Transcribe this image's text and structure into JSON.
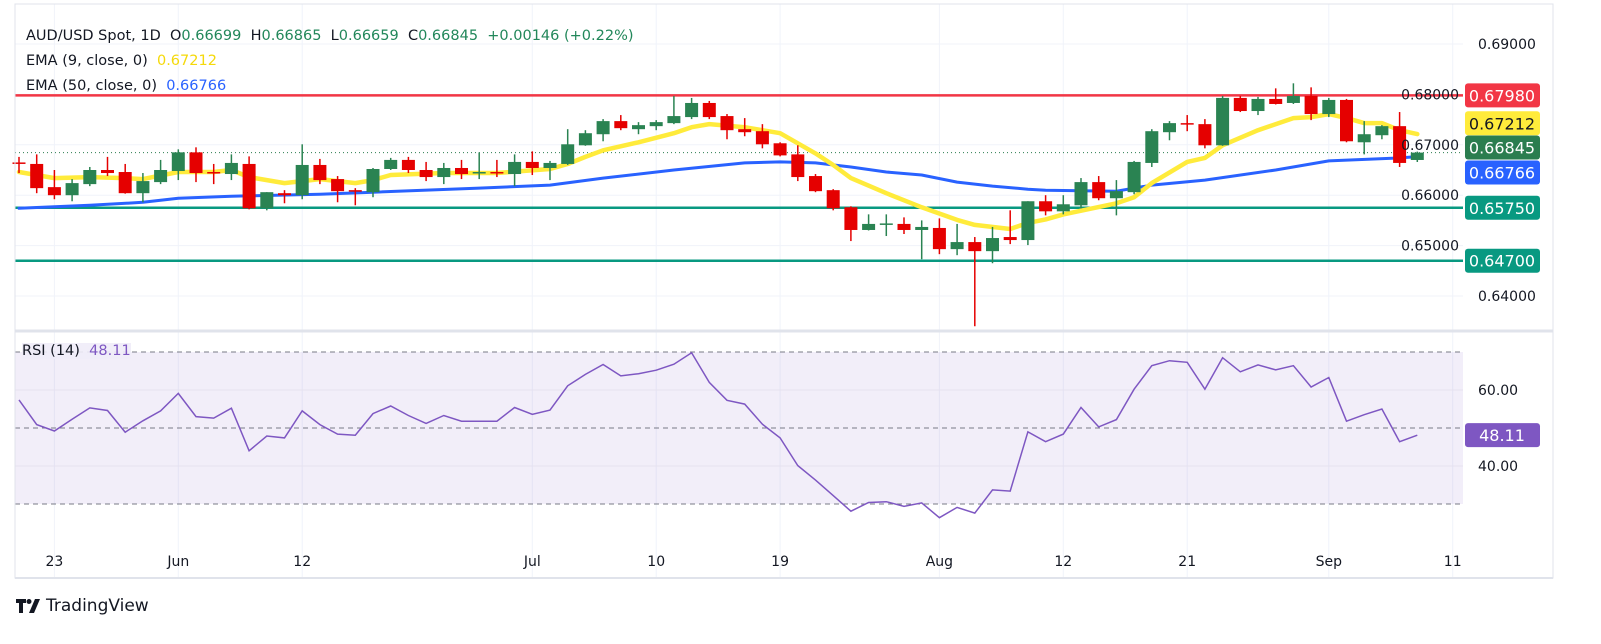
{
  "header": {
    "symbol": "AUD/USD Spot, 1D",
    "ohlc": [
      {
        "key": "O",
        "value": "0.66699"
      },
      {
        "key": "H",
        "value": "0.66865"
      },
      {
        "key": "L",
        "value": "0.66659"
      },
      {
        "key": "C",
        "value": "0.66845"
      }
    ],
    "change": "+0.00146 (+0.22%)",
    "ema9_label": "EMA (9, close, 0)",
    "ema9_value": "0.67212",
    "ema50_label": "EMA (50, close, 0)",
    "ema50_value": "0.66766",
    "rsi_label": "RSI (14)",
    "rsi_value": "48.11"
  },
  "colors": {
    "up": "#2a8352",
    "down": "#e50000",
    "ema9": "#ffeb3b",
    "ema50": "#2962ff",
    "resistance": "#f23645",
    "support": "#089981",
    "rsi": "#7e57c2",
    "last_price": "#2b7d4f"
  },
  "brand": "TradingView",
  "chart_data": [
    {
      "type": "candlestick",
      "title": "AUD/USD Spot, 1D",
      "ylim": [
        0.6335,
        0.6935
      ],
      "grid": true,
      "y_ticks": [
        "0.69000",
        "0.68000",
        "0.67000",
        "0.66000",
        "0.65000",
        "0.64000"
      ],
      "x_ticks": [
        {
          "label": "23",
          "date": "05-23"
        },
        {
          "label": "Jun",
          "date": "06-03"
        },
        {
          "label": "12",
          "date": "06-12"
        },
        {
          "label": "Jul",
          "date": "07-01"
        },
        {
          "label": "10",
          "date": "07-10"
        },
        {
          "label": "19",
          "date": "07-19"
        },
        {
          "label": "Aug",
          "date": "08-01"
        },
        {
          "label": "12",
          "date": "08-12"
        },
        {
          "label": "21",
          "date": "08-21"
        },
        {
          "label": "Sep",
          "date": "09-02"
        },
        {
          "label": "11",
          "date": "09-11"
        }
      ],
      "candles_columns": [
        "date",
        "open",
        "high",
        "low",
        "close"
      ],
      "candles": [
        [
          "05-21",
          0.6665,
          0.6676,
          0.6644,
          0.6664
        ],
        [
          "05-22",
          0.6662,
          0.6681,
          0.6604,
          0.6614
        ],
        [
          "05-23",
          0.6616,
          0.665,
          0.6592,
          0.66
        ],
        [
          "05-24",
          0.66,
          0.6632,
          0.6588,
          0.6624
        ],
        [
          "05-27",
          0.6622,
          0.6656,
          0.6618,
          0.665
        ],
        [
          "05-28",
          0.665,
          0.6676,
          0.6638,
          0.6644
        ],
        [
          "05-29",
          0.6646,
          0.6662,
          0.6603,
          0.6604
        ],
        [
          "05-30",
          0.6604,
          0.6644,
          0.6586,
          0.6628
        ],
        [
          "05-31",
          0.6626,
          0.667,
          0.6622,
          0.665
        ],
        [
          "06-03",
          0.6648,
          0.6691,
          0.663,
          0.6685
        ],
        [
          "06-04",
          0.6685,
          0.6695,
          0.6626,
          0.6644
        ],
        [
          "06-05",
          0.6646,
          0.6662,
          0.6622,
          0.6644
        ],
        [
          "06-06",
          0.6642,
          0.6681,
          0.663,
          0.6664
        ],
        [
          "06-07",
          0.6662,
          0.6677,
          0.6572,
          0.6574
        ],
        [
          "06-10",
          0.6574,
          0.6606,
          0.657,
          0.6606
        ],
        [
          "06-11",
          0.6604,
          0.661,
          0.6584,
          0.66
        ],
        [
          "06-12",
          0.66,
          0.6701,
          0.6592,
          0.666
        ],
        [
          "06-13",
          0.666,
          0.6672,
          0.6622,
          0.663
        ],
        [
          "06-14",
          0.6632,
          0.6638,
          0.6586,
          0.6608
        ],
        [
          "06-17",
          0.661,
          0.6614,
          0.658,
          0.6608
        ],
        [
          "06-18",
          0.6606,
          0.6654,
          0.6596,
          0.6652
        ],
        [
          "06-19",
          0.6652,
          0.6674,
          0.665,
          0.667
        ],
        [
          "06-20",
          0.667,
          0.6676,
          0.6644,
          0.665
        ],
        [
          "06-21",
          0.665,
          0.6666,
          0.6628,
          0.6636
        ],
        [
          "06-24",
          0.6636,
          0.6664,
          0.6622,
          0.6654
        ],
        [
          "06-25",
          0.6654,
          0.667,
          0.6632,
          0.6642
        ],
        [
          "06-26",
          0.6644,
          0.6685,
          0.6632,
          0.6646
        ],
        [
          "06-27",
          0.6646,
          0.667,
          0.6636,
          0.6644
        ],
        [
          "06-28",
          0.6642,
          0.6681,
          0.6618,
          0.6666
        ],
        [
          "07-01",
          0.6666,
          0.6687,
          0.664,
          0.6654
        ],
        [
          "07-02",
          0.6654,
          0.6668,
          0.663,
          0.6664
        ],
        [
          "07-03",
          0.6662,
          0.6731,
          0.666,
          0.6701
        ],
        [
          "07-04",
          0.6699,
          0.6729,
          0.6698,
          0.6723
        ],
        [
          "07-05",
          0.6721,
          0.6751,
          0.6707,
          0.6747
        ],
        [
          "07-08",
          0.6747,
          0.6759,
          0.6729,
          0.6733
        ],
        [
          "07-09",
          0.6731,
          0.6745,
          0.6721,
          0.6739
        ],
        [
          "07-10",
          0.6737,
          0.6749,
          0.6729,
          0.6745
        ],
        [
          "07-11",
          0.6743,
          0.6797,
          0.6741,
          0.6757
        ],
        [
          "07-12",
          0.6755,
          0.6793,
          0.6751,
          0.6783
        ],
        [
          "07-15",
          0.6783,
          0.6787,
          0.6751,
          0.6755
        ],
        [
          "07-16",
          0.6757,
          0.6761,
          0.6711,
          0.6729
        ],
        [
          "07-17",
          0.6731,
          0.6753,
          0.6717,
          0.6725
        ],
        [
          "07-18",
          0.6727,
          0.6741,
          0.6693,
          0.6701
        ],
        [
          "07-19",
          0.6703,
          0.6705,
          0.6677,
          0.6679
        ],
        [
          "07-22",
          0.6681,
          0.6699,
          0.6628,
          0.6636
        ],
        [
          "07-23",
          0.6638,
          0.6642,
          0.6606,
          0.6608
        ],
        [
          "07-24",
          0.661,
          0.6612,
          0.657,
          0.6574
        ],
        [
          "07-25",
          0.6576,
          0.6578,
          0.6509,
          0.6531
        ],
        [
          "07-26",
          0.6531,
          0.6562,
          0.653,
          0.6543
        ],
        [
          "07-29",
          0.6543,
          0.6562,
          0.6519,
          0.6544
        ],
        [
          "07-30",
          0.6543,
          0.6556,
          0.6523,
          0.6531
        ],
        [
          "07-31",
          0.6531,
          0.655,
          0.6473,
          0.6537
        ],
        [
          "08-01",
          0.6535,
          0.6554,
          0.6483,
          0.6493
        ],
        [
          "08-02",
          0.6493,
          0.6543,
          0.6481,
          0.6507
        ],
        [
          "08-05",
          0.6507,
          0.6517,
          0.634,
          0.6489
        ],
        [
          "08-06",
          0.6489,
          0.6537,
          0.6465,
          0.6515
        ],
        [
          "08-07",
          0.6517,
          0.657,
          0.6503,
          0.6511
        ],
        [
          "08-08",
          0.6511,
          0.6588,
          0.6501,
          0.6588
        ],
        [
          "08-09",
          0.6588,
          0.66,
          0.656,
          0.6568
        ],
        [
          "08-12",
          0.6568,
          0.66,
          0.6562,
          0.6582
        ],
        [
          "08-13",
          0.658,
          0.6634,
          0.6574,
          0.6626
        ],
        [
          "08-14",
          0.6626,
          0.6638,
          0.659,
          0.6594
        ],
        [
          "08-15",
          0.6594,
          0.663,
          0.656,
          0.6608
        ],
        [
          "08-16",
          0.6606,
          0.6668,
          0.6602,
          0.6666
        ],
        [
          "08-19",
          0.6664,
          0.6731,
          0.6656,
          0.6727
        ],
        [
          "08-20",
          0.6725,
          0.6747,
          0.6709,
          0.6743
        ],
        [
          "08-21",
          0.6743,
          0.6759,
          0.6727,
          0.6741
        ],
        [
          "08-22",
          0.6741,
          0.6751,
          0.6693,
          0.6699
        ],
        [
          "08-23",
          0.6699,
          0.6797,
          0.6698,
          0.6793
        ],
        [
          "08-26",
          0.6793,
          0.6797,
          0.6765,
          0.6767
        ],
        [
          "08-27",
          0.6767,
          0.6795,
          0.6759,
          0.6791
        ],
        [
          "08-28",
          0.6791,
          0.6812,
          0.678,
          0.6781
        ],
        [
          "08-29",
          0.6783,
          0.6822,
          0.6781,
          0.6797
        ],
        [
          "08-30",
          0.6797,
          0.6814,
          0.6749,
          0.6761
        ],
        [
          "09-02",
          0.6761,
          0.6793,
          0.6755,
          0.6789
        ],
        [
          "09-03",
          0.6789,
          0.6791,
          0.6705,
          0.6707
        ],
        [
          "09-04",
          0.6705,
          0.6747,
          0.6681,
          0.6721
        ],
        [
          "09-05",
          0.6719,
          0.6739,
          0.6711,
          0.6737
        ],
        [
          "09-06",
          0.6737,
          0.6765,
          0.6656,
          0.6664
        ],
        [
          "09-09",
          0.66699,
          0.66865,
          0.66659,
          0.66845
        ]
      ],
      "ema9": [
        [
          "05-21",
          0.6646
        ],
        [
          "05-23",
          0.6634
        ],
        [
          "05-27",
          0.6636
        ],
        [
          "05-29",
          0.6634
        ],
        [
          "05-30",
          0.6632
        ],
        [
          "06-03",
          0.6646
        ],
        [
          "06-05",
          0.6646
        ],
        [
          "06-06",
          0.665
        ],
        [
          "06-07",
          0.6636
        ],
        [
          "06-11",
          0.6624
        ],
        [
          "06-13",
          0.6632
        ],
        [
          "06-17",
          0.6624
        ],
        [
          "06-18",
          0.663
        ],
        [
          "06-19",
          0.664
        ],
        [
          "06-24",
          0.6644
        ],
        [
          "06-27",
          0.6644
        ],
        [
          "07-02",
          0.6652
        ],
        [
          "07-03",
          0.6662
        ],
        [
          "07-04",
          0.6676
        ],
        [
          "07-05",
          0.6689
        ],
        [
          "07-09",
          0.6705
        ],
        [
          "07-11",
          0.6723
        ],
        [
          "07-12",
          0.6735
        ],
        [
          "07-15",
          0.6741
        ],
        [
          "07-17",
          0.6735
        ],
        [
          "07-19",
          0.6723
        ],
        [
          "07-23",
          0.6683
        ],
        [
          "07-24",
          0.666
        ],
        [
          "07-25",
          0.6634
        ],
        [
          "07-29",
          0.6604
        ],
        [
          "07-31",
          0.6576
        ],
        [
          "08-02",
          0.6551
        ],
        [
          "08-05",
          0.6541
        ],
        [
          "08-07",
          0.6533
        ],
        [
          "08-08",
          0.6545
        ],
        [
          "08-09",
          0.6552
        ],
        [
          "08-12",
          0.6562
        ],
        [
          "08-15",
          0.6584
        ],
        [
          "08-16",
          0.6596
        ],
        [
          "08-19",
          0.6624
        ],
        [
          "08-21",
          0.6666
        ],
        [
          "08-22",
          0.6674
        ],
        [
          "08-23",
          0.6699
        ],
        [
          "08-27",
          0.6729
        ],
        [
          "08-29",
          0.6753
        ],
        [
          "08-30",
          0.6755
        ],
        [
          "09-02",
          0.6761
        ],
        [
          "09-03",
          0.6753
        ],
        [
          "09-04",
          0.6743
        ],
        [
          "09-05",
          0.6743
        ],
        [
          "09-06",
          0.6729
        ],
        [
          "09-09",
          0.67212
        ]
      ],
      "ema50": [
        [
          "05-21",
          0.6574
        ],
        [
          "05-27",
          0.658
        ],
        [
          "05-30",
          0.6586
        ],
        [
          "06-03",
          0.6594
        ],
        [
          "06-06",
          0.6598
        ],
        [
          "06-13",
          0.6602
        ],
        [
          "06-18",
          0.6606
        ],
        [
          "06-26",
          0.6614
        ],
        [
          "07-02",
          0.662
        ],
        [
          "07-05",
          0.6634
        ],
        [
          "07-11",
          0.665
        ],
        [
          "07-17",
          0.6664
        ],
        [
          "07-19",
          0.6666
        ],
        [
          "07-23",
          0.6664
        ],
        [
          "07-25",
          0.6656
        ],
        [
          "07-29",
          0.6646
        ],
        [
          "07-31",
          0.664
        ],
        [
          "08-02",
          0.6626
        ],
        [
          "08-06",
          0.6618
        ],
        [
          "08-08",
          0.6612
        ],
        [
          "08-09",
          0.661
        ],
        [
          "08-15",
          0.6608
        ],
        [
          "08-19",
          0.662
        ],
        [
          "08-22",
          0.663
        ],
        [
          "08-28",
          0.665
        ],
        [
          "09-02",
          0.6668
        ],
        [
          "09-06",
          0.6674
        ],
        [
          "09-09",
          0.66766
        ]
      ],
      "horizontal_levels": [
        {
          "value": 0.6798,
          "label": "0.67980",
          "color": "#f23645"
        },
        {
          "value": 0.6575,
          "label": "0.65750",
          "color": "#089981"
        },
        {
          "value": 0.647,
          "label": "0.64700",
          "color": "#089981"
        }
      ],
      "price_labels": [
        {
          "value": 0.6798,
          "label": "0.67980",
          "bg": "#f23645",
          "fg": "#ffffff"
        },
        {
          "value": 0.67212,
          "label": "0.67212",
          "bg": "#ffeb3b",
          "fg": "#131722"
        },
        {
          "value": 0.66845,
          "label": "0.66845",
          "bg": "#2b7d4f",
          "fg": "#ffffff"
        },
        {
          "value": 0.66766,
          "label": "0.66766",
          "bg": "#2962ff",
          "fg": "#ffffff"
        },
        {
          "value": 0.6575,
          "label": "0.65750",
          "bg": "#089981",
          "fg": "#ffffff"
        },
        {
          "value": 0.647,
          "label": "0.64700",
          "bg": "#089981",
          "fg": "#ffffff"
        }
      ],
      "last_price": 0.66845
    },
    {
      "type": "line",
      "title": "RSI (14)",
      "ylim": [
        18,
        79
      ],
      "y_ticks": [
        "60.00",
        "40.00"
      ],
      "bands": {
        "upper": 70,
        "middle": 50,
        "lower": 30
      },
      "last_label": "48.11",
      "values": [
        57.4,
        50.9,
        49.2,
        52.3,
        55.3,
        54.6,
        48.9,
        51.9,
        54.5,
        59.1,
        53.0,
        52.6,
        55.2,
        44.0,
        47.9,
        47.4,
        54.5,
        50.9,
        48.4,
        48.1,
        53.8,
        55.8,
        53.3,
        51.2,
        53.3,
        51.8,
        51.8,
        51.8,
        55.4,
        53.6,
        54.7,
        61.1,
        64.1,
        66.7,
        63.7,
        64.3,
        65.2,
        66.8,
        69.8,
        62.0,
        57.3,
        56.3,
        51.0,
        47.4,
        40.1,
        36.3,
        32.2,
        28.1,
        30.4,
        30.6,
        29.4,
        30.3,
        26.4,
        29.1,
        27.6,
        33.7,
        33.4,
        49.0,
        46.4,
        48.4,
        55.4,
        50.3,
        52.2,
        60.2,
        66.4,
        67.7,
        67.3,
        60.2,
        68.5,
        64.8,
        66.6,
        65.3,
        66.4,
        60.8,
        63.3,
        51.8,
        53.5,
        55.0,
        46.4,
        48.11
      ]
    }
  ]
}
